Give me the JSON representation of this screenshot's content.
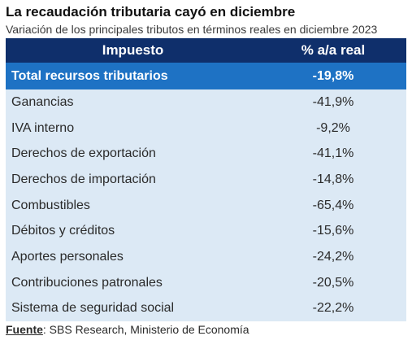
{
  "header": {
    "title": "La recaudación tributaria cayó en diciembre",
    "subtitle": "Variación de los principales tributos en términos reales en diciembre 2023"
  },
  "table": {
    "columns": [
      "Impuesto",
      "% a/a real"
    ],
    "total": {
      "name": "Total recursos tributarios",
      "value": "-19,8%"
    },
    "rows": [
      {
        "name": "Ganancias",
        "value": "-41,9%"
      },
      {
        "name": "IVA interno",
        "value": "-9,2%"
      },
      {
        "name": "Derechos de exportación",
        "value": "-41,1%"
      },
      {
        "name": "Derechos de importación",
        "value": "-14,8%"
      },
      {
        "name": "Combustibles",
        "value": "-65,4%"
      },
      {
        "name": "Débitos y créditos",
        "value": "-15,6%"
      },
      {
        "name": "Aportes personales",
        "value": "-24,2%"
      },
      {
        "name": "Contribuciones patronales",
        "value": "-20,5%"
      },
      {
        "name": "Sistema de seguridad social",
        "value": "-22,2%"
      }
    ]
  },
  "footer": {
    "source_label": "Fuente",
    "source_text": " SBS Research, Ministerio de Economía"
  },
  "colors": {
    "header_bg": "#0f2f6b",
    "total_bg": "#1e72c4",
    "row_bg": "#dce9f5"
  }
}
